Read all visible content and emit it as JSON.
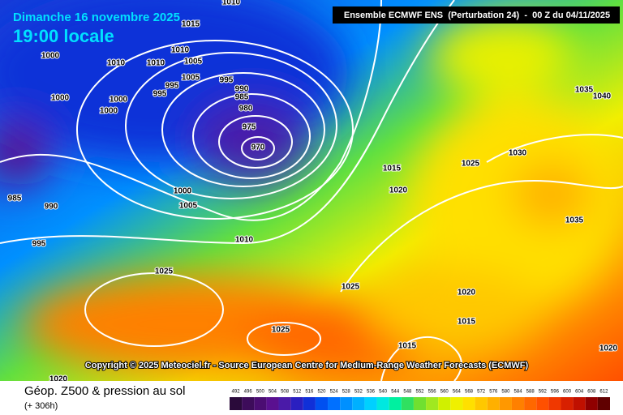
{
  "header": {
    "date": "Dimanche 16 novembre 2025",
    "time": "19:00 locale",
    "run": "Ensemble ECMWF ENS  (Perturbation 24)  -  00 Z du 04/11/2025"
  },
  "map": {
    "isobar_labels": [
      "1010",
      "1015",
      "1000",
      "1010",
      "1010",
      "1010",
      "1005",
      "1005",
      "995",
      "995",
      "995",
      "990",
      "985",
      "1000",
      "1000",
      "1000",
      "980",
      "975",
      "970",
      "1000",
      "1005",
      "985",
      "990",
      "995",
      "1010",
      "1025",
      "1025",
      "1025",
      "1015",
      "1020",
      "1025",
      "1030",
      "1035",
      "1040",
      "1035",
      "1020",
      "1015",
      "1015",
      "1020",
      "1020"
    ],
    "copyright": "Copyright © 2025 Meteociel.fr - Source European Centre for Medium-Range Weather Forecasts (ECMWF)"
  },
  "footer": {
    "title": "Géop. Z500 & pression au sol",
    "lead": "(+ 306h)",
    "scale": {
      "labels": [
        "492",
        "496",
        "500",
        "504",
        "508",
        "512",
        "516",
        "520",
        "524",
        "528",
        "532",
        "536",
        "540",
        "544",
        "548",
        "552",
        "556",
        "560",
        "564",
        "568",
        "572",
        "576",
        "580",
        "584",
        "588",
        "592",
        "596",
        "600",
        "604",
        "608",
        "612"
      ],
      "colors": [
        "#2a0a3a",
        "#3d0c5a",
        "#4b0d72",
        "#5a1090",
        "#4a1aa8",
        "#2a1fc0",
        "#1030d8",
        "#0050f0",
        "#0070ff",
        "#0090ff",
        "#00b0ff",
        "#00d0ff",
        "#00e8e0",
        "#00f0a0",
        "#30e060",
        "#70e030",
        "#a0e820",
        "#d0f000",
        "#f0f000",
        "#ffe000",
        "#ffc800",
        "#ffb000",
        "#ff9800",
        "#ff8000",
        "#ff6800",
        "#ff5000",
        "#f03800",
        "#d82000",
        "#c01000",
        "#900000",
        "#600000"
      ]
    }
  }
}
